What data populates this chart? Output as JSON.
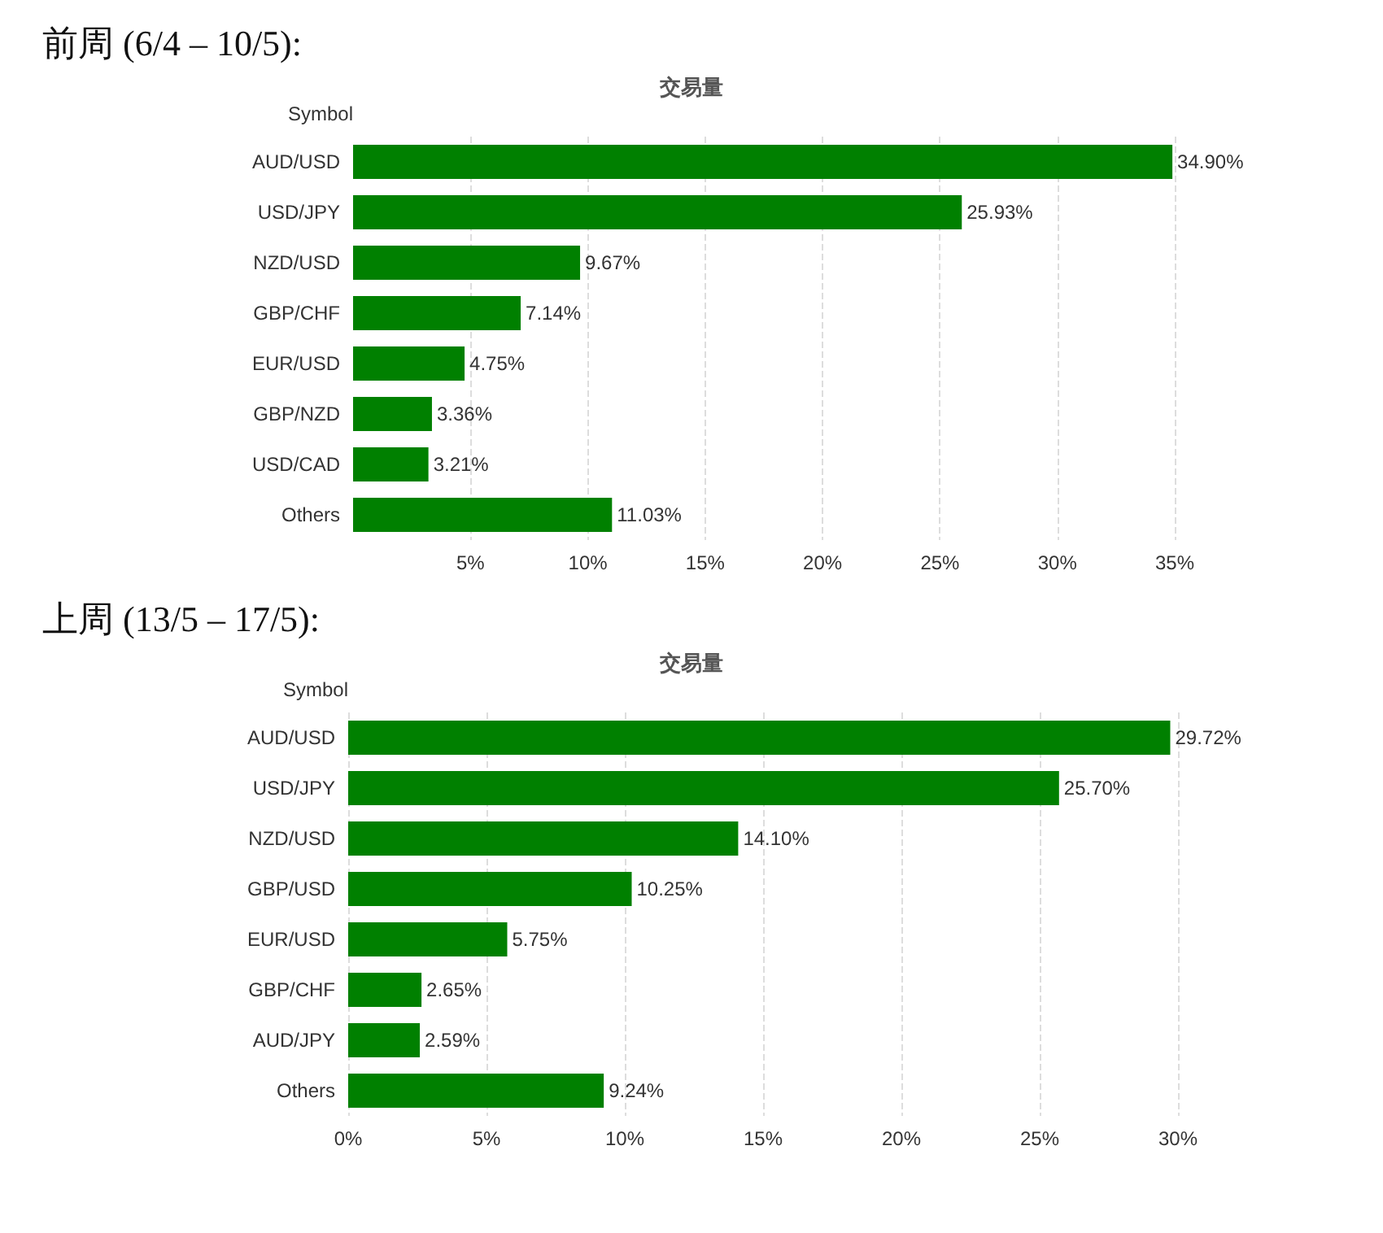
{
  "chart_data": [
    {
      "type": "bar",
      "orientation": "horizontal",
      "title": "前周 (6/4 – 10/5):",
      "subtitle": "交易量",
      "ylabel": "Symbol",
      "categories": [
        "AUD/USD",
        "USD/JPY",
        "NZD/USD",
        "GBP/CHF",
        "EUR/USD",
        "GBP/NZD",
        "USD/CAD",
        "Others"
      ],
      "values": [
        34.9,
        25.93,
        9.67,
        7.14,
        4.75,
        3.36,
        3.21,
        11.03
      ],
      "value_labels": [
        "34.90%",
        "25.93%",
        "9.67%",
        "7.14%",
        "4.75%",
        "3.36%",
        "3.21%",
        "11.03%"
      ],
      "color": "#008000",
      "xlim": [
        0,
        35
      ],
      "xticks": [
        {
          "value": 5,
          "label": "5%"
        },
        {
          "value": 10,
          "label": "10%"
        },
        {
          "value": 15,
          "label": "15%"
        },
        {
          "value": 20,
          "label": "20%"
        },
        {
          "value": 25,
          "label": "25%"
        },
        {
          "value": 30,
          "label": "30%"
        },
        {
          "value": 35,
          "label": "35%"
        }
      ],
      "grid": "x"
    },
    {
      "type": "bar",
      "orientation": "horizontal",
      "title": "上周 (13/5 – 17/5):",
      "subtitle": "交易量",
      "ylabel": "Symbol",
      "categories": [
        "AUD/USD",
        "USD/JPY",
        "NZD/USD",
        "GBP/USD",
        "EUR/USD",
        "GBP/CHF",
        "AUD/JPY",
        "Others"
      ],
      "values": [
        29.72,
        25.7,
        14.1,
        10.25,
        5.75,
        2.65,
        2.59,
        9.24
      ],
      "value_labels": [
        "29.72%",
        "25.70%",
        "14.10%",
        "10.25%",
        "5.75%",
        "2.65%",
        "2.59%",
        "9.24%"
      ],
      "color": "#008000",
      "xlim": [
        0,
        30
      ],
      "xticks": [
        {
          "value": 0,
          "label": "0%"
        },
        {
          "value": 5,
          "label": "5%"
        },
        {
          "value": 10,
          "label": "10%"
        },
        {
          "value": 15,
          "label": "15%"
        },
        {
          "value": 20,
          "label": "20%"
        },
        {
          "value": 25,
          "label": "25%"
        },
        {
          "value": 30,
          "label": "30%"
        }
      ],
      "grid": "x"
    }
  ]
}
